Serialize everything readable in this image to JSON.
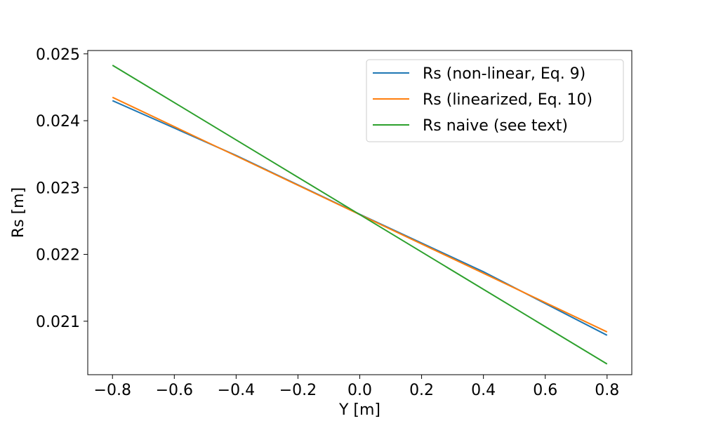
{
  "chart_data": {
    "type": "line",
    "xlabel": "Y [m]",
    "ylabel": "Rs [m]",
    "xlim": [
      -0.88,
      0.88
    ],
    "ylim": [
      0.0202,
      0.02505
    ],
    "xticks": [
      -0.8,
      -0.6,
      -0.4,
      -0.2,
      0.0,
      0.2,
      0.4,
      0.6,
      0.8
    ],
    "xtick_labels": [
      "−0.8",
      "−0.6",
      "−0.4",
      "−0.2",
      "0.0",
      "0.2",
      "0.4",
      "0.6",
      "0.8"
    ],
    "yticks": [
      0.021,
      0.022,
      0.023,
      0.024,
      0.025
    ],
    "ytick_labels": [
      "0.021",
      "0.022",
      "0.023",
      "0.024",
      "0.025"
    ],
    "grid": false,
    "legend_position": "top-right",
    "series": [
      {
        "name": "Rs (non-linear, Eq. 9)",
        "color": "#1f77b4",
        "x": [
          -0.8,
          -0.4,
          0.0,
          0.4,
          0.8
        ],
        "y": [
          0.0243,
          0.02348,
          0.0226,
          0.02174,
          0.02079
        ]
      },
      {
        "name": "Rs (linearized, Eq. 10)",
        "color": "#ff7f0e",
        "x": [
          -0.8,
          0.8
        ],
        "y": [
          0.02435,
          0.02084
        ]
      },
      {
        "name": "Rs naive (see text)",
        "color": "#2ca02c",
        "x": [
          -0.8,
          0.8
        ],
        "y": [
          0.02483,
          0.02036
        ]
      }
    ]
  }
}
